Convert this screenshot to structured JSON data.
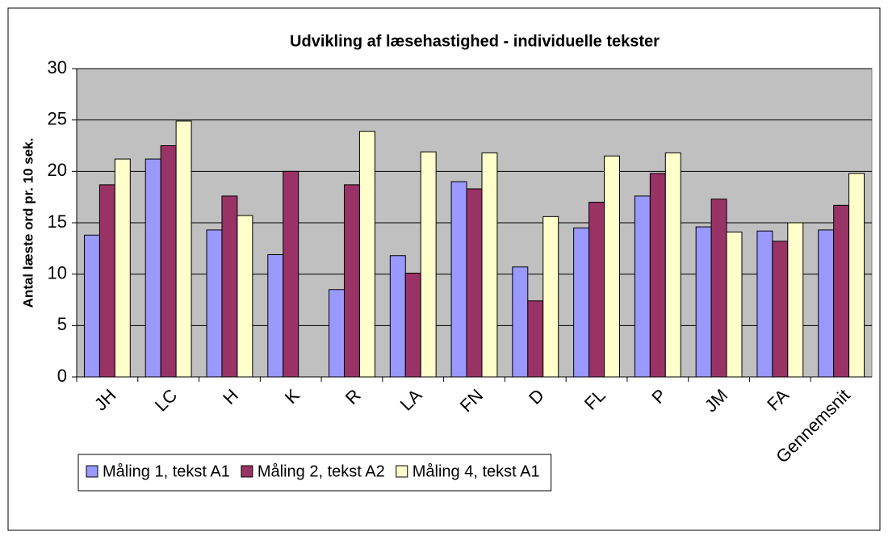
{
  "chart_data": {
    "type": "bar",
    "title": "Udvikling af læsehastighed - individuelle tekster",
    "y_label": "Antal læste ord pr. 10 sek.",
    "categories": [
      "JH",
      "LC",
      "H",
      "K",
      "R",
      "LA",
      "FN",
      "D",
      "FL",
      "P",
      "JM",
      "FA",
      "Gennemsnit"
    ],
    "series": [
      {
        "name": "Måling 1, tekst A1",
        "color": "#9999ff",
        "values": [
          13.8,
          21.2,
          14.3,
          11.9,
          8.5,
          11.8,
          19.0,
          10.7,
          14.5,
          17.6,
          14.6,
          14.2,
          14.3
        ]
      },
      {
        "name": "Måling 2, tekst A2",
        "color": "#993366",
        "values": [
          18.7,
          22.5,
          17.6,
          20.0,
          18.7,
          10.1,
          18.3,
          7.4,
          17.0,
          19.8,
          17.3,
          13.2,
          16.7
        ]
      },
      {
        "name": "Måling 4, tekst A1",
        "color": "#ffffcc",
        "values": [
          21.2,
          24.9,
          15.7,
          null,
          23.9,
          21.9,
          21.8,
          15.6,
          21.5,
          21.8,
          14.1,
          15.0,
          19.8
        ]
      }
    ],
    "ylim": [
      0,
      30
    ],
    "yticks": [
      0,
      5,
      10,
      15,
      20,
      25,
      30
    ],
    "grid": true,
    "plot_background": "#c0c0c0",
    "legend": "bottom"
  }
}
